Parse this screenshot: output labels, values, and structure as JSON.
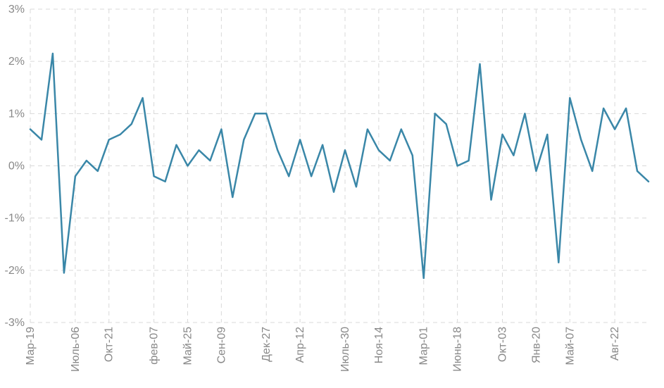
{
  "chart_data": {
    "type": "line",
    "title": "",
    "xlabel": "",
    "ylabel": "",
    "ylim": [
      -3,
      3
    ],
    "y_ticks": [
      3,
      2,
      1,
      0,
      -1,
      -2,
      -3
    ],
    "y_tick_labels": [
      "3%",
      "2%",
      "1%",
      "0%",
      "-1%",
      "-2%",
      "-3%"
    ],
    "grid": true,
    "legend": "none",
    "colors": {
      "series": "#3a87a8",
      "grid": "#d9d9d9",
      "tick_text": "#888888"
    },
    "x_tick_labels": [
      {
        "index": 0,
        "label": "Мар-19"
      },
      {
        "index": 4,
        "label": "Июль-06"
      },
      {
        "index": 7,
        "label": "Окт-21"
      },
      {
        "index": 11,
        "label": "фев-07"
      },
      {
        "index": 14,
        "label": "Май-25"
      },
      {
        "index": 17,
        "label": "Сен-09"
      },
      {
        "index": 21,
        "label": "Дек-27"
      },
      {
        "index": 24,
        "label": "Апр-12"
      },
      {
        "index": 28,
        "label": "Июль-30"
      },
      {
        "index": 31,
        "label": "Ноя-14"
      },
      {
        "index": 35,
        "label": "Мар-01"
      },
      {
        "index": 38,
        "label": "Июнь-18"
      },
      {
        "index": 42,
        "label": "Окт-03"
      },
      {
        "index": 45,
        "label": "Янв-20"
      },
      {
        "index": 48,
        "label": "Май-07"
      },
      {
        "index": 52,
        "label": "Авг-22"
      }
    ],
    "series": [
      {
        "values": [
          0.7,
          0.5,
          2.15,
          -2.05,
          -0.2,
          0.1,
          -0.1,
          0.5,
          0.6,
          0.8,
          1.3,
          -0.2,
          -0.3,
          0.4,
          0.0,
          0.3,
          0.1,
          0.7,
          -0.6,
          0.5,
          1.0,
          1.0,
          0.3,
          -0.2,
          0.5,
          -0.2,
          0.4,
          -0.5,
          0.3,
          -0.4,
          0.7,
          0.3,
          0.1,
          0.7,
          0.2,
          -2.15,
          1.0,
          0.8,
          0.0,
          0.1,
          1.95,
          -0.65,
          0.6,
          0.2,
          1.0,
          -0.1,
          0.6,
          -1.85,
          1.3,
          0.5,
          -0.1,
          1.1,
          0.7,
          1.1,
          -0.1,
          -0.3
        ]
      }
    ]
  }
}
